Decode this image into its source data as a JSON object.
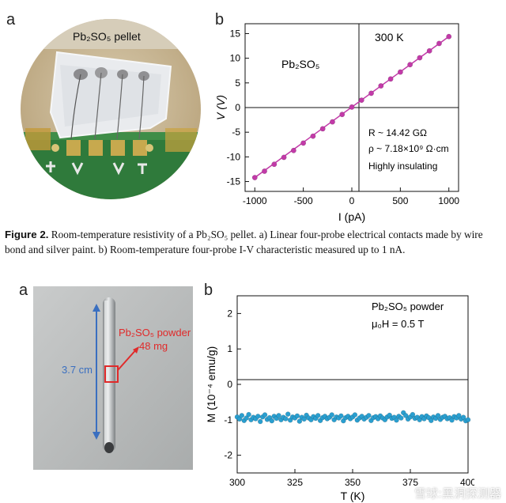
{
  "figure2": {
    "panel_a_label": "a",
    "panel_b_label": "b",
    "photo_label": "Pb₂SO₅ pellet",
    "caption_prefix": "Figure 2.",
    "caption_text": " Room-temperature resistivity of a Pb₂SO₅ pellet. a) Linear four-probe electrical contacts made by wire bond and silver paint. b) Room-temperature four-probe I-V characteristic measured up to 1 nA."
  },
  "figure3": {
    "panel_a_label": "a",
    "panel_b_label": "b",
    "sample_label_line1": "Pb₂SO₅ powder",
    "sample_label_line2": "48 mg",
    "length_label": "3.7 cm"
  },
  "watermark": "雪球:黑洞探测器",
  "colors": {
    "iv_series": "#c23aa8",
    "m_series": "#2a9fd0",
    "arrow": "#3a6fc0",
    "highlight": "#e02a2a"
  },
  "chart_data": [
    {
      "type": "scatter",
      "title": "",
      "xlabel": "I (pA)",
      "ylabel": "V (V)",
      "xlim": [
        -1100,
        1100
      ],
      "ylim": [
        -17,
        17
      ],
      "xticks": [
        -1000,
        -500,
        0,
        500,
        1000
      ],
      "yticks": [
        -15,
        -10,
        -5,
        0,
        5,
        10,
        15
      ],
      "annotations": [
        "300 K",
        "Pb₂SO₅",
        "R ~ 14.42 GΩ",
        "ρ ~ 7.18×10⁹ Ω·cm",
        "Highly insulating"
      ],
      "series": [
        {
          "x": [
            -1000,
            -900,
            -800,
            -700,
            -600,
            -500,
            -400,
            -300,
            -200,
            -100,
            0,
            100,
            200,
            300,
            400,
            500,
            600,
            700,
            800,
            900,
            1000
          ],
          "y": [
            -14.2,
            -12.9,
            -11.5,
            -10.1,
            -8.7,
            -7.2,
            -5.8,
            -4.3,
            -2.9,
            -1.4,
            0.1,
            1.5,
            2.9,
            4.4,
            5.8,
            7.2,
            8.7,
            10.1,
            11.5,
            13.0,
            14.4
          ]
        }
      ]
    },
    {
      "type": "scatter",
      "title": "",
      "xlabel": "T (K)",
      "ylabel": "M (10⁻⁴ emu/g)",
      "xlim": [
        300,
        400
      ],
      "ylim": [
        -2.5,
        2.5
      ],
      "xticks": [
        300,
        325,
        350,
        375,
        400
      ],
      "yticks": [
        -2,
        -1,
        0,
        1,
        2
      ],
      "annotations": [
        "Pb₂SO₅ powder",
        "μ₀H = 0.5 T"
      ],
      "series": [
        {
          "x": [
            300,
            301,
            302,
            303,
            304,
            305,
            306,
            307,
            308,
            309,
            310,
            311,
            312,
            313,
            314,
            315,
            316,
            317,
            318,
            319,
            320,
            321,
            322,
            323,
            324,
            325,
            326,
            327,
            328,
            329,
            330,
            331,
            332,
            333,
            334,
            335,
            336,
            337,
            338,
            339,
            340,
            341,
            342,
            343,
            344,
            345,
            346,
            347,
            348,
            349,
            350,
            351,
            352,
            353,
            354,
            355,
            356,
            357,
            358,
            359,
            360,
            361,
            362,
            363,
            364,
            365,
            366,
            367,
            368,
            369,
            370,
            371,
            372,
            373,
            374,
            375,
            376,
            377,
            378,
            379,
            380,
            381,
            382,
            383,
            384,
            385,
            386,
            387,
            388,
            389,
            390,
            391,
            392,
            393,
            394,
            395,
            396,
            397,
            398,
            399,
            400
          ],
          "y": [
            -0.92,
            -0.98,
            -0.88,
            -1.02,
            -0.95,
            -0.85,
            -1.0,
            -0.93,
            -0.97,
            -0.9,
            -1.05,
            -0.92,
            -0.86,
            -0.99,
            -0.94,
            -1.03,
            -0.9,
            -0.96,
            -0.88,
            -1.0,
            -0.93,
            -0.97,
            -0.84,
            -1.01,
            -0.92,
            -0.95,
            -0.89,
            -1.04,
            -0.93,
            -0.98,
            -0.87,
            -0.95,
            -1.0,
            -0.91,
            -0.96,
            -0.88,
            -1.02,
            -0.94,
            -0.9,
            -0.97,
            -0.93,
            -0.86,
            -1.0,
            -0.92,
            -0.95,
            -0.89,
            -1.03,
            -0.94,
            -0.9,
            -0.97,
            -0.92,
            -0.86,
            -1.01,
            -0.95,
            -0.9,
            -0.98,
            -0.93,
            -0.88,
            -1.02,
            -0.94,
            -0.91,
            -0.97,
            -0.89,
            -0.95,
            -1.0,
            -0.92,
            -0.87,
            -0.96,
            -0.93,
            -1.01,
            -0.9,
            -0.95,
            -0.8,
            -0.88,
            -0.98,
            -0.92,
            -0.85,
            -0.96,
            -0.93,
            -1.0,
            -0.91,
            -0.97,
            -0.89,
            -0.94,
            -1.02,
            -0.92,
            -0.96,
            -0.88,
            -0.99,
            -0.93,
            -0.9,
            -0.97,
            -0.94,
            -1.01,
            -0.91,
            -0.95,
            -0.88,
            -0.98,
            -0.93,
            -1.03,
            -1.0
          ]
        }
      ]
    }
  ]
}
